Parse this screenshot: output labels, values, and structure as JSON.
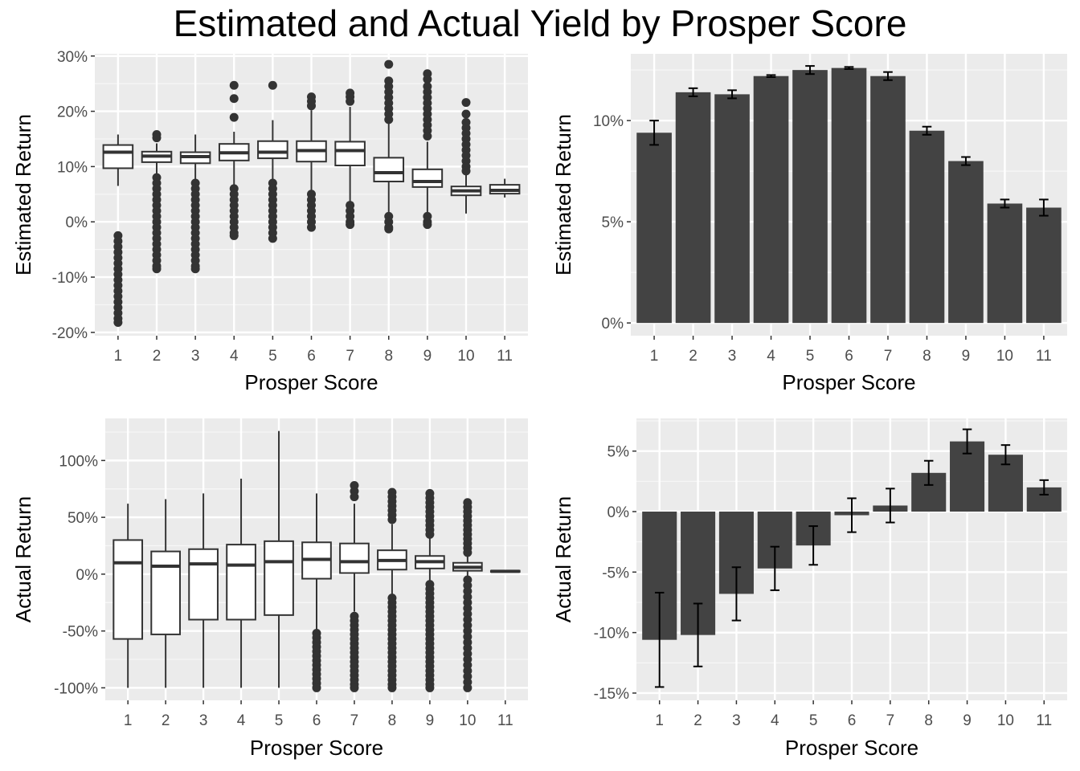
{
  "title": "Estimated and Actual Yield by Prosper Score",
  "chart_data": [
    {
      "type": "box",
      "xlabel": "Prosper Score",
      "ylabel": "Estimated Return",
      "categories": [
        "1",
        "2",
        "3",
        "4",
        "5",
        "6",
        "7",
        "8",
        "9",
        "10",
        "11"
      ],
      "yticks": [
        -20,
        -10,
        0,
        10,
        20,
        30
      ],
      "ytick_labels": [
        "-20%",
        "-10%",
        "0%",
        "10%",
        "20%",
        "30%"
      ],
      "ylim": [
        -20.6,
        30.4
      ],
      "boxes": [
        {
          "q1": 9.7,
          "median": 12.6,
          "q3": 13.9,
          "whisker_low": 6.5,
          "whisker_high": 15.8,
          "outliers": [
            -2.5,
            -3.5,
            -4.5,
            -5.5,
            -6.5,
            -7.5,
            -8.5,
            -9.5,
            -10.5,
            -11.5,
            -12.5,
            -13.5,
            -14.5,
            -15.5,
            -16.5,
            -17.5,
            -18.2
          ]
        },
        {
          "q1": 10.8,
          "median": 11.9,
          "q3": 12.7,
          "whisker_low": 8.5,
          "whisker_high": 14.2,
          "outliers": [
            15.8,
            15.2,
            8,
            7,
            6,
            5,
            4,
            3,
            2,
            1,
            0,
            -1,
            -2,
            -3,
            -4,
            -5,
            -6,
            -7,
            -8,
            -8.5
          ]
        },
        {
          "q1": 10.6,
          "median": 11.8,
          "q3": 12.6,
          "whisker_low": 7.5,
          "whisker_high": 15.8,
          "outliers": [
            7,
            6,
            5,
            4,
            3,
            2,
            1,
            0,
            -1,
            -2,
            -3,
            -4,
            -5,
            -6,
            -7,
            -8,
            -8.5
          ]
        },
        {
          "q1": 11.1,
          "median": 12.5,
          "q3": 14.1,
          "whisker_low": 6.5,
          "whisker_high": 16.3,
          "outliers": [
            24.7,
            22.3,
            18.9,
            6,
            5,
            4,
            3,
            2,
            1,
            0,
            -1,
            -2,
            -2.5
          ]
        },
        {
          "q1": 11.5,
          "median": 12.6,
          "q3": 14.6,
          "whisker_low": 7.0,
          "whisker_high": 18.4,
          "outliers": [
            24.7,
            7,
            6,
            5,
            4,
            3,
            2,
            1,
            0,
            -1,
            -2,
            -3
          ]
        },
        {
          "q1": 10.9,
          "median": 12.9,
          "q3": 14.6,
          "whisker_low": 5.5,
          "whisker_high": 20.2,
          "outliers": [
            22.6,
            21.8,
            21,
            5,
            4,
            3,
            2,
            1,
            0,
            -1
          ]
        },
        {
          "q1": 10.2,
          "median": 12.9,
          "q3": 14.5,
          "whisker_low": 3.2,
          "whisker_high": 20.8,
          "outliers": [
            23.3,
            22.6,
            21.8,
            3,
            2,
            1,
            0,
            -0.5
          ]
        },
        {
          "q1": 7.3,
          "median": 8.9,
          "q3": 11.6,
          "whisker_low": 1.3,
          "whisker_high": 17.8,
          "outliers": [
            28.5,
            25.5,
            24.5,
            23.5,
            22.5,
            21.5,
            20.5,
            19.5,
            18.5,
            1,
            0,
            -1,
            -1.3
          ]
        },
        {
          "q1": 6.3,
          "median": 7.3,
          "q3": 9.5,
          "whisker_low": 1.0,
          "whisker_high": 14.5,
          "outliers": [
            26.8,
            25.8,
            24.5,
            23.5,
            22.5,
            21.5,
            20.5,
            19.5,
            18.5,
            17.5,
            16.5,
            15.5,
            1,
            0,
            -0.5
          ]
        },
        {
          "q1": 4.8,
          "median": 5.6,
          "q3": 6.4,
          "whisker_low": 1.5,
          "whisker_high": 8.7,
          "outliers": [
            21.6,
            19.5,
            18,
            17,
            16,
            15,
            14,
            13,
            12,
            11,
            10,
            9.2
          ]
        },
        {
          "q1": 5.1,
          "median": 5.7,
          "q3": 6.7,
          "whisker_low": 4.4,
          "whisker_high": 7.8,
          "outliers": []
        }
      ]
    },
    {
      "type": "bar",
      "xlabel": "Prosper Score",
      "ylabel": "Estimated Return",
      "categories": [
        "1",
        "2",
        "3",
        "4",
        "5",
        "6",
        "7",
        "8",
        "9",
        "10",
        "11"
      ],
      "values": [
        9.4,
        11.4,
        11.3,
        12.2,
        12.5,
        12.6,
        12.2,
        9.5,
        8.0,
        5.9,
        5.7
      ],
      "error_low": [
        8.8,
        11.2,
        11.1,
        12.15,
        12.3,
        12.55,
        12.0,
        9.3,
        7.8,
        5.7,
        5.3
      ],
      "error_high": [
        10.0,
        11.6,
        11.5,
        12.25,
        12.7,
        12.65,
        12.4,
        9.7,
        8.2,
        6.1,
        6.1
      ],
      "yticks": [
        0,
        5,
        10
      ],
      "ytick_labels": [
        "0%",
        "5%",
        "10%"
      ],
      "ylim": [
        -0.63,
        13.3
      ]
    },
    {
      "type": "box",
      "xlabel": "Prosper Score",
      "ylabel": "Actual Return",
      "categories": [
        "1",
        "2",
        "3",
        "4",
        "5",
        "6",
        "7",
        "8",
        "9",
        "10",
        "11"
      ],
      "yticks": [
        -100,
        -50,
        0,
        50,
        100
      ],
      "ytick_labels": [
        "-100%",
        "-50%",
        "0%",
        "50%",
        "100%"
      ],
      "ylim": [
        -111,
        137
      ],
      "boxes": [
        {
          "q1": -57,
          "median": 10,
          "q3": 30,
          "whisker_low": -100,
          "whisker_high": 62,
          "outliers": []
        },
        {
          "q1": -53,
          "median": 7,
          "q3": 20,
          "whisker_low": -100,
          "whisker_high": 66,
          "outliers": []
        },
        {
          "q1": -40,
          "median": 9,
          "q3": 22,
          "whisker_low": -100,
          "whisker_high": 71,
          "outliers": []
        },
        {
          "q1": -40,
          "median": 8,
          "q3": 26,
          "whisker_low": -100,
          "whisker_high": 84,
          "outliers": []
        },
        {
          "q1": -36,
          "median": 11,
          "q3": 29,
          "whisker_low": -100,
          "whisker_high": 126,
          "outliers": []
        },
        {
          "q1": -4,
          "median": 13,
          "q3": 28,
          "whisker_low": -49,
          "whisker_high": 71,
          "outliers": [
            -52,
            -56,
            -60,
            -64,
            -68,
            -72,
            -76,
            -80,
            -84,
            -88,
            -92,
            -96,
            -100
          ]
        },
        {
          "q1": 1,
          "median": 11,
          "q3": 27,
          "whisker_low": -33,
          "whisker_high": 62,
          "outliers": [
            78,
            73,
            68,
            -37,
            -41,
            -45,
            -49,
            -53,
            -57,
            -61,
            -65,
            -69,
            -73,
            -77,
            -81,
            -85,
            -89,
            -93,
            -97,
            -100
          ]
        },
        {
          "q1": 4,
          "median": 12,
          "q3": 21,
          "whisker_low": -18,
          "whisker_high": 44,
          "outliers": [
            72,
            68,
            64,
            60,
            56,
            52,
            48,
            -21,
            -25,
            -29,
            -33,
            -37,
            -41,
            -45,
            -49,
            -53,
            -57,
            -61,
            -65,
            -69,
            -73,
            -77,
            -81,
            -85,
            -89,
            -93,
            -97,
            -100
          ]
        },
        {
          "q1": 5,
          "median": 11,
          "q3": 16,
          "whisker_low": -6,
          "whisker_high": 32,
          "outliers": [
            71,
            67,
            63,
            59,
            55,
            51,
            47,
            43,
            39,
            35,
            -9,
            -13,
            -17,
            -21,
            -25,
            -29,
            -33,
            -37,
            -41,
            -45,
            -49,
            -53,
            -57,
            -61,
            -65,
            -69,
            -73,
            -77,
            -81,
            -85,
            -89,
            -93,
            -97,
            -100
          ]
        },
        {
          "q1": 3,
          "median": 6,
          "q3": 10,
          "whisker_low": -2,
          "whisker_high": 16,
          "outliers": [
            63,
            59,
            55,
            51,
            47,
            43,
            39,
            35,
            31,
            27,
            23,
            19,
            -5,
            -10,
            -15,
            -20,
            -25,
            -30,
            -35,
            -40,
            -45,
            -50,
            -55,
            -60,
            -65,
            -70,
            -75,
            -80,
            -85,
            -90,
            -95,
            -100
          ]
        },
        {
          "q1": 2,
          "median": 2.5,
          "q3": 3,
          "whisker_low": 1.5,
          "whisker_high": 3.5,
          "outliers": []
        }
      ]
    },
    {
      "type": "bar",
      "xlabel": "Prosper Score",
      "ylabel": "Actual Return",
      "categories": [
        "1",
        "2",
        "3",
        "4",
        "5",
        "6",
        "7",
        "8",
        "9",
        "10",
        "11"
      ],
      "values": [
        -10.6,
        -10.2,
        -6.8,
        -4.7,
        -2.8,
        -0.3,
        0.5,
        3.2,
        5.8,
        4.7,
        2.0
      ],
      "error_low": [
        -14.5,
        -12.8,
        -9.0,
        -6.5,
        -4.4,
        -1.7,
        -0.9,
        2.2,
        4.8,
        3.9,
        1.4
      ],
      "error_high": [
        -6.7,
        -7.6,
        -4.6,
        -2.9,
        -1.2,
        1.1,
        1.9,
        4.2,
        6.8,
        5.5,
        2.6
      ],
      "yticks": [
        -15,
        -10,
        -5,
        0,
        5
      ],
      "ytick_labels": [
        "-15%",
        "-10%",
        "-5%",
        "0%",
        "5%"
      ],
      "ylim": [
        -15.6,
        7.7
      ]
    }
  ]
}
